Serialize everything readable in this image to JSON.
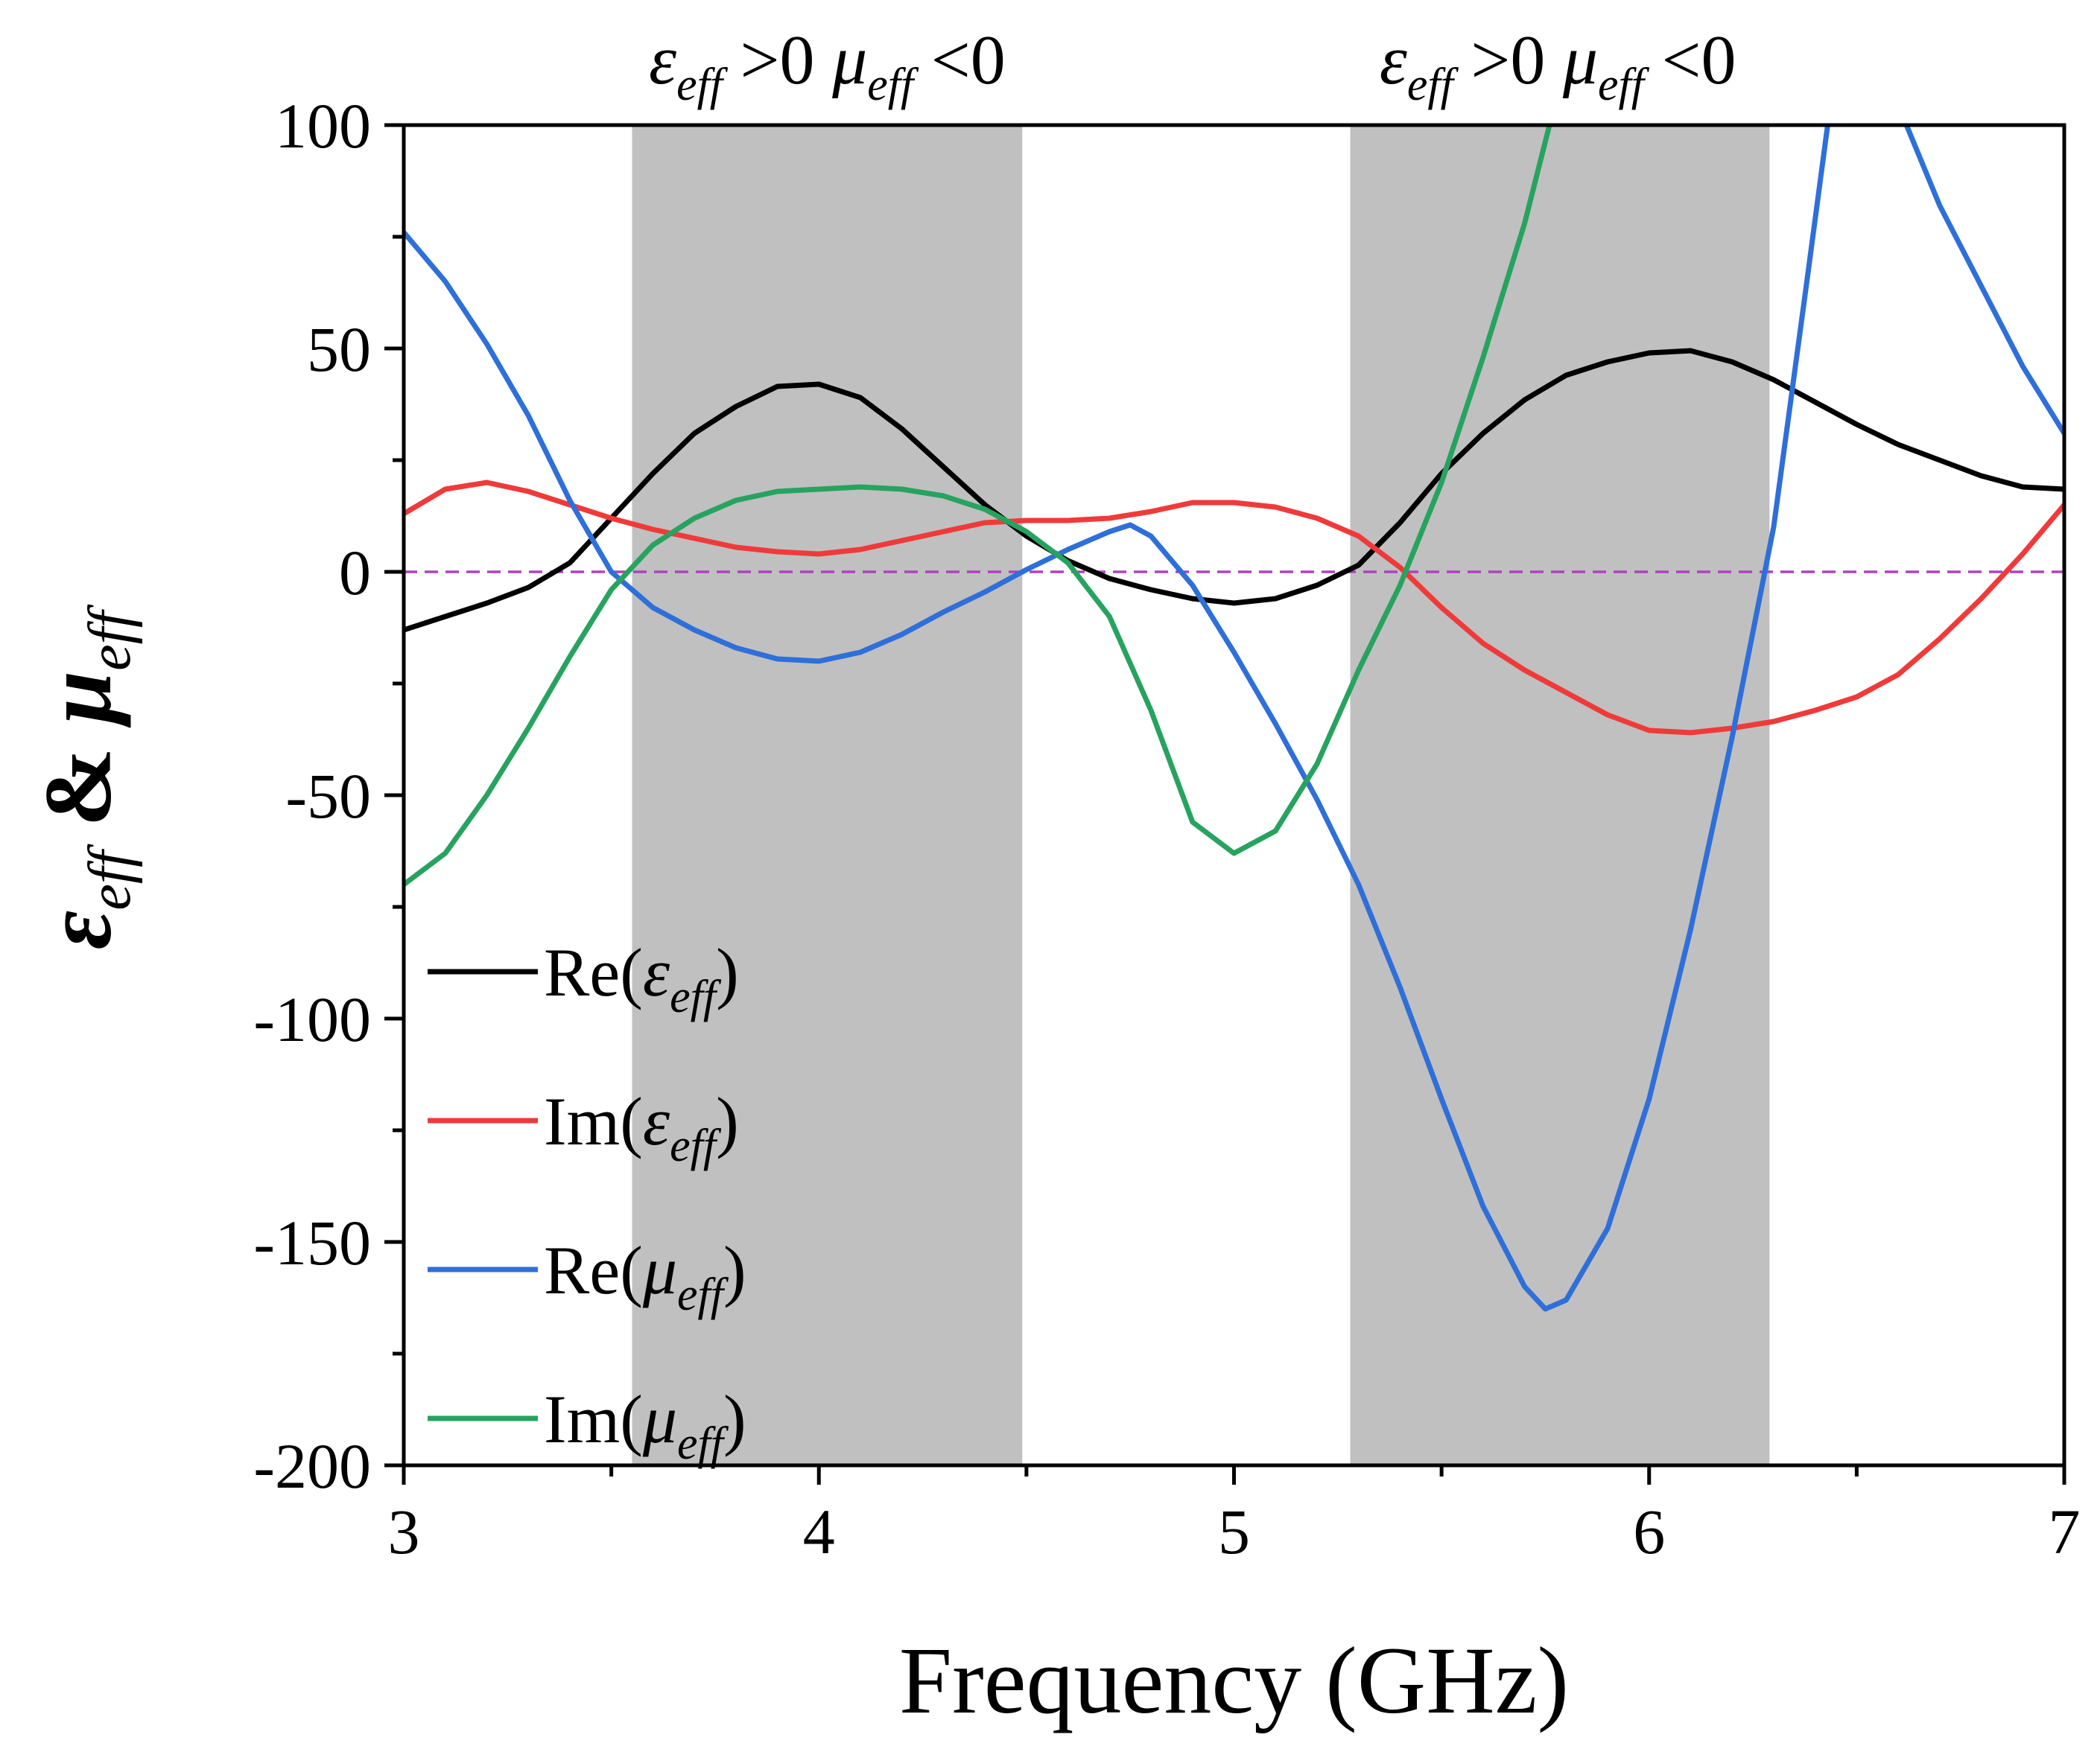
{
  "chart_data": {
    "type": "line",
    "xlabel": "Frequency (GHz)",
    "ylabel": {
      "parts": [
        [
          "ε",
          "eff"
        ],
        [
          "&",
          ""
        ],
        [
          "μ",
          "eff"
        ]
      ]
    },
    "xlim": [
      3,
      7
    ],
    "ylim": [
      -200,
      100
    ],
    "xticks": [
      3,
      4,
      5,
      6,
      7
    ],
    "xtick_labels": [
      "3",
      "4",
      "5",
      "6",
      "7"
    ],
    "yticks": [
      -200,
      -150,
      -100,
      -50,
      0,
      50,
      100
    ],
    "ytick_labels": [
      "-200",
      "-150",
      "-100",
      "-50",
      "0",
      "50",
      "100"
    ],
    "shaded_regions": [
      {
        "x0": 3.55,
        "x1": 4.49,
        "color": "#c0c0c0"
      },
      {
        "x0": 5.28,
        "x1": 6.29,
        "color": "#c0c0c0"
      }
    ],
    "reference_line": {
      "y": 0,
      "color": "#b041c0",
      "style": "dashed"
    },
    "annotations": [
      {
        "x_center": 4.02,
        "parts": [
          [
            "ε",
            "eff",
            " >0  "
          ],
          [
            "μ",
            "eff",
            " <0"
          ]
        ]
      },
      {
        "x_center": 5.78,
        "parts": [
          [
            "ε",
            "eff",
            " >0  "
          ],
          [
            "μ",
            "eff",
            " <0"
          ]
        ]
      }
    ],
    "legend_position": "bottom-left",
    "series": [
      {
        "name": "Re(εeff)",
        "legend": {
          "prefix": "Re(",
          "sym": "ε",
          "sub": "eff",
          "suffix": ")"
        },
        "color": "#000000",
        "points": [
          [
            3.0,
            -13
          ],
          [
            3.1,
            -10
          ],
          [
            3.2,
            -7
          ],
          [
            3.3,
            -3.5
          ],
          [
            3.4,
            2
          ],
          [
            3.5,
            12
          ],
          [
            3.6,
            22
          ],
          [
            3.7,
            31
          ],
          [
            3.8,
            37
          ],
          [
            3.9,
            41.5
          ],
          [
            4.0,
            42
          ],
          [
            4.1,
            39
          ],
          [
            4.2,
            32
          ],
          [
            4.3,
            23.5
          ],
          [
            4.4,
            15
          ],
          [
            4.5,
            8
          ],
          [
            4.6,
            2.5
          ],
          [
            4.7,
            -1.5
          ],
          [
            4.8,
            -4
          ],
          [
            4.9,
            -6
          ],
          [
            5.0,
            -7
          ],
          [
            5.1,
            -6
          ],
          [
            5.2,
            -3
          ],
          [
            5.3,
            1.5
          ],
          [
            5.4,
            11
          ],
          [
            5.5,
            22
          ],
          [
            5.6,
            31
          ],
          [
            5.7,
            38.5
          ],
          [
            5.8,
            44
          ],
          [
            5.9,
            47
          ],
          [
            6.0,
            49
          ],
          [
            6.1,
            49.5
          ],
          [
            6.2,
            47
          ],
          [
            6.3,
            43
          ],
          [
            6.4,
            38
          ],
          [
            6.5,
            33
          ],
          [
            6.6,
            28.5
          ],
          [
            6.7,
            25
          ],
          [
            6.8,
            21.5
          ],
          [
            6.9,
            19
          ],
          [
            7.0,
            18.5
          ]
        ]
      },
      {
        "name": "Im(εeff)",
        "legend": {
          "prefix": "Im(",
          "sym": "ε",
          "sub": "eff",
          "suffix": ")"
        },
        "color": "#f03a3a",
        "points": [
          [
            3.0,
            13
          ],
          [
            3.1,
            18.5
          ],
          [
            3.2,
            20
          ],
          [
            3.3,
            18
          ],
          [
            3.4,
            15
          ],
          [
            3.5,
            12
          ],
          [
            3.6,
            9.5
          ],
          [
            3.7,
            7.5
          ],
          [
            3.8,
            5.5
          ],
          [
            3.9,
            4.5
          ],
          [
            4.0,
            4
          ],
          [
            4.1,
            5
          ],
          [
            4.2,
            7
          ],
          [
            4.3,
            9
          ],
          [
            4.4,
            11
          ],
          [
            4.5,
            11.5
          ],
          [
            4.6,
            11.5
          ],
          [
            4.7,
            12
          ],
          [
            4.8,
            13.5
          ],
          [
            4.9,
            15.5
          ],
          [
            5.0,
            15.5
          ],
          [
            5.1,
            14.5
          ],
          [
            5.2,
            12
          ],
          [
            5.3,
            8
          ],
          [
            5.4,
            1
          ],
          [
            5.5,
            -8
          ],
          [
            5.6,
            -16
          ],
          [
            5.7,
            -22
          ],
          [
            5.8,
            -27
          ],
          [
            5.9,
            -32
          ],
          [
            6.0,
            -35.5
          ],
          [
            6.1,
            -36
          ],
          [
            6.2,
            -35
          ],
          [
            6.3,
            -33.5
          ],
          [
            6.4,
            -31
          ],
          [
            6.5,
            -28
          ],
          [
            6.6,
            -23
          ],
          [
            6.7,
            -15
          ],
          [
            6.8,
            -6
          ],
          [
            6.9,
            4
          ],
          [
            7.0,
            15
          ]
        ]
      },
      {
        "name": "Re(μeff)",
        "legend": {
          "prefix": "Re(",
          "sym": "μ",
          "sub": "eff",
          "suffix": ")"
        },
        "color": "#2e6fd9",
        "points": [
          [
            3.0,
            76
          ],
          [
            3.1,
            65
          ],
          [
            3.2,
            51
          ],
          [
            3.3,
            35
          ],
          [
            3.4,
            16
          ],
          [
            3.5,
            0
          ],
          [
            3.6,
            -8
          ],
          [
            3.7,
            -13
          ],
          [
            3.8,
            -17
          ],
          [
            3.9,
            -19.5
          ],
          [
            4.0,
            -20
          ],
          [
            4.1,
            -18
          ],
          [
            4.2,
            -14
          ],
          [
            4.3,
            -9
          ],
          [
            4.4,
            -4.5
          ],
          [
            4.5,
            0.5
          ],
          [
            4.6,
            5
          ],
          [
            4.7,
            9
          ],
          [
            4.75,
            10.5
          ],
          [
            4.8,
            8
          ],
          [
            4.9,
            -3
          ],
          [
            5.0,
            -18
          ],
          [
            5.1,
            -34
          ],
          [
            5.2,
            -51
          ],
          [
            5.3,
            -70
          ],
          [
            5.4,
            -93
          ],
          [
            5.5,
            -118
          ],
          [
            5.6,
            -142
          ],
          [
            5.7,
            -160
          ],
          [
            5.75,
            -165
          ],
          [
            5.8,
            -163
          ],
          [
            5.9,
            -147
          ],
          [
            6.0,
            -118
          ],
          [
            6.1,
            -80
          ],
          [
            6.2,
            -37
          ],
          [
            6.3,
            10
          ],
          [
            6.38,
            65
          ],
          [
            6.43,
            100
          ]
        ]
      },
      {
        "name": "Re(μeff) branch",
        "color": "#2e6fd9",
        "points": [
          [
            6.62,
            100
          ],
          [
            6.7,
            82
          ],
          [
            6.8,
            64
          ],
          [
            6.9,
            46
          ],
          [
            7.0,
            31
          ]
        ]
      },
      {
        "name": "Im(μeff)",
        "legend": {
          "prefix": "Im(",
          "sym": "μ",
          "sub": "eff",
          "suffix": ")"
        },
        "color": "#27a35f",
        "points": [
          [
            3.0,
            -70
          ],
          [
            3.1,
            -63
          ],
          [
            3.2,
            -50
          ],
          [
            3.3,
            -35
          ],
          [
            3.4,
            -19
          ],
          [
            3.5,
            -4
          ],
          [
            3.6,
            6
          ],
          [
            3.7,
            12
          ],
          [
            3.8,
            16
          ],
          [
            3.9,
            18
          ],
          [
            4.0,
            18.5
          ],
          [
            4.1,
            19
          ],
          [
            4.2,
            18.5
          ],
          [
            4.3,
            17
          ],
          [
            4.4,
            14
          ],
          [
            4.5,
            9
          ],
          [
            4.6,
            2
          ],
          [
            4.7,
            -10
          ],
          [
            4.8,
            -31
          ],
          [
            4.9,
            -56
          ],
          [
            5.0,
            -63
          ],
          [
            5.1,
            -58
          ],
          [
            5.2,
            -43
          ],
          [
            5.3,
            -22
          ],
          [
            5.4,
            -3
          ],
          [
            5.5,
            20
          ],
          [
            5.6,
            48
          ],
          [
            5.7,
            78
          ],
          [
            5.76,
            100
          ]
        ]
      }
    ]
  }
}
